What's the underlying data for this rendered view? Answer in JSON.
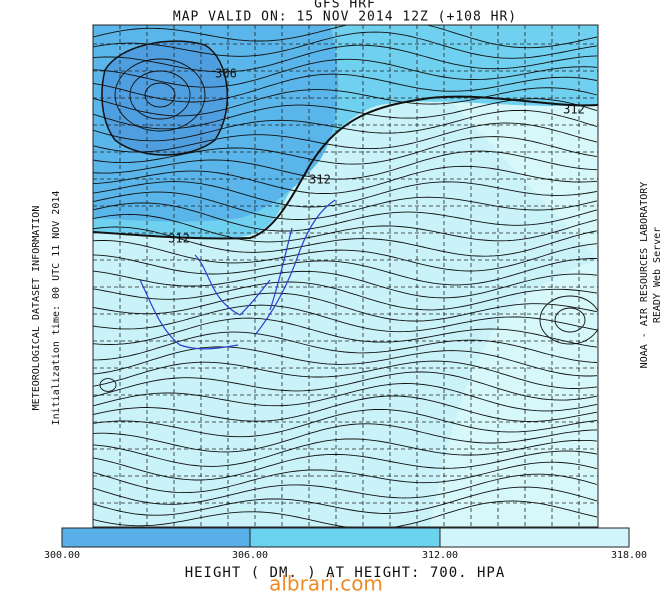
{
  "header": {
    "model": "GFS HRF",
    "valid": "MAP VALID ON: 15 NOV 2014 12Z (+108 HR)"
  },
  "contour_labels": [
    "306",
    "312",
    "312",
    "312"
  ],
  "side_left": [
    "METEOROLOGICAL DATASET INFORMATION",
    "Initialization time: 00 UTC 11 NOV 2014"
  ],
  "side_right": [
    "NOAA - AIR RESOURCES LABORATORY",
    "READY Web Server"
  ],
  "colorbar": [
    "300.00",
    "306.00",
    "312.00",
    "318.00"
  ],
  "footer": {
    "caption": "HEIGHT ( DM. ) AT HEIGHT: 700. HPA",
    "watermark": "albrari.com"
  }
}
